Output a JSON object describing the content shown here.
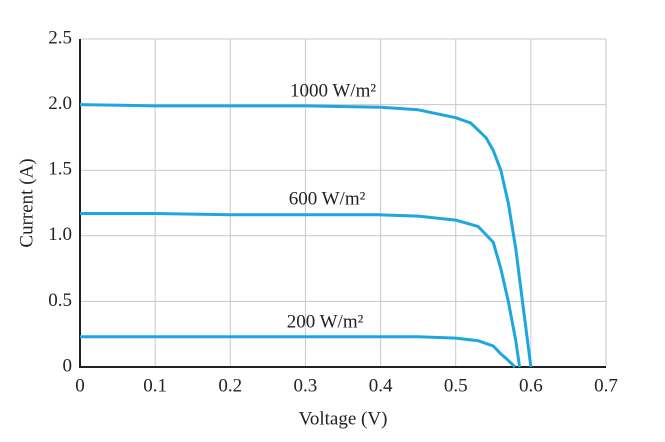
{
  "chart_data": {
    "type": "line",
    "x_label": "Voltage (V)",
    "y_label": "Current (A)",
    "xlim": [
      0,
      0.7
    ],
    "xticks": [
      0,
      0.1,
      0.2,
      0.3,
      0.4,
      0.5,
      0.6,
      0.7
    ],
    "ylim": [
      0,
      2.5
    ],
    "yticks": [
      0,
      0.5,
      {
        "value": 1.0,
        "label": "1.0"
      },
      1.5,
      {
        "value": 2.0,
        "label": "2.0"
      },
      2.5
    ],
    "grid": true,
    "series": [
      {
        "name": "1000 W/m²",
        "color": "#1ea6e0",
        "x": [
          0,
          0.1,
          0.2,
          0.3,
          0.4,
          0.45,
          0.5,
          0.52,
          0.54,
          0.55,
          0.56,
          0.57,
          0.58,
          0.59,
          0.6
        ],
        "values": [
          2.0,
          1.99,
          1.99,
          1.99,
          1.98,
          1.96,
          1.9,
          1.86,
          1.75,
          1.65,
          1.5,
          1.25,
          0.9,
          0.45,
          0
        ]
      },
      {
        "name": "600 W/m²",
        "color": "#1ea6e0",
        "x": [
          0,
          0.1,
          0.2,
          0.3,
          0.4,
          0.45,
          0.5,
          0.53,
          0.55,
          0.56,
          0.57,
          0.58,
          0.585
        ],
        "values": [
          1.17,
          1.17,
          1.16,
          1.16,
          1.16,
          1.15,
          1.12,
          1.07,
          0.95,
          0.75,
          0.5,
          0.2,
          0
        ]
      },
      {
        "name": "200 W/m²",
        "color": "#1ea6e0",
        "x": [
          0,
          0.1,
          0.2,
          0.3,
          0.4,
          0.45,
          0.5,
          0.53,
          0.55,
          0.56,
          0.57,
          0.579
        ],
        "values": [
          0.23,
          0.23,
          0.23,
          0.23,
          0.23,
          0.23,
          0.22,
          0.2,
          0.16,
          0.1,
          0.05,
          0
        ]
      }
    ]
  }
}
